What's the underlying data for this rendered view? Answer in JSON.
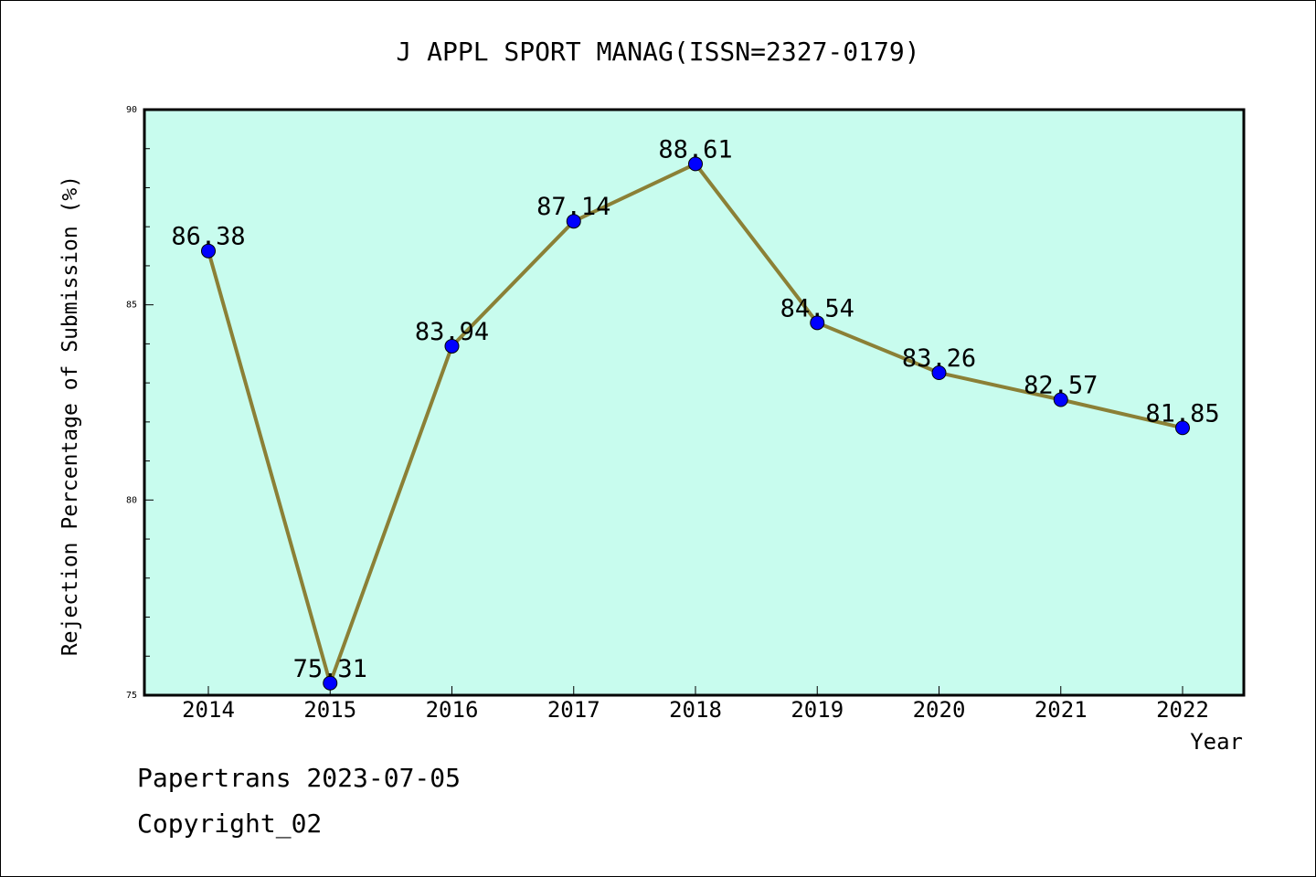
{
  "chart_data": {
    "type": "line",
    "title": "J APPL SPORT MANAG(ISSN=2327-0179)",
    "xlabel": "Year",
    "ylabel": "Rejection Percentage of Submission (%)",
    "categories": [
      "2014",
      "2015",
      "2016",
      "2017",
      "2018",
      "2019",
      "2020",
      "2021",
      "2022"
    ],
    "series": [
      {
        "values": [
          86.38,
          75.31,
          83.94,
          87.14,
          88.61,
          84.54,
          83.26,
          82.57,
          81.85
        ],
        "labels": [
          "86.38",
          "75.31",
          "83.94",
          "87.14",
          "88.61",
          "84.54",
          "83.26",
          "82.57",
          "81.85"
        ]
      }
    ],
    "ylim": [
      75,
      90
    ],
    "yticks": [
      "75",
      "80",
      "85",
      "90"
    ],
    "grid": false,
    "colors": {
      "plot_background": "#c8fcee",
      "line": "#8b8036",
      "marker": "#0000ff",
      "axis": "#000000"
    }
  },
  "footer": {
    "source": "Papertrans 2023-07-05",
    "copyright": "Copyright_02"
  }
}
